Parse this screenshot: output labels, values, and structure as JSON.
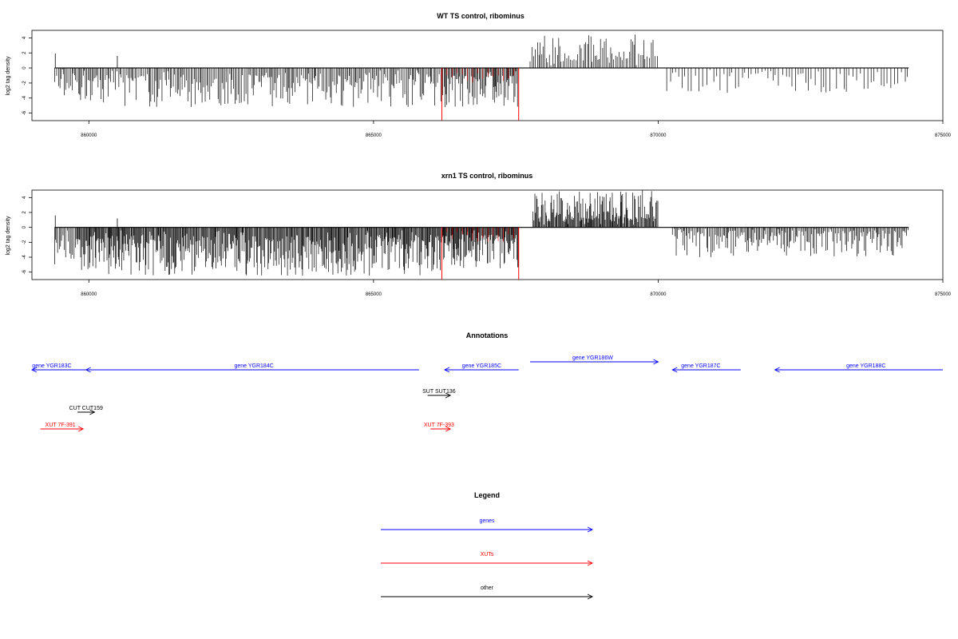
{
  "chart_data": [
    {
      "type": "bar",
      "title": "WT TS control, ribominus",
      "xlabel": "",
      "ylabel": "log2 tag density",
      "xlim": [
        859000,
        875000
      ],
      "ylim": [
        -7,
        5
      ],
      "x_ticks": [
        "860000",
        "865000",
        "870000",
        "875000"
      ],
      "y_ticks": [
        "-6",
        "-4",
        "-2",
        "0",
        "2",
        "4"
      ],
      "x_tick_values": [
        860000,
        865000,
        870000,
        875000
      ],
      "y_tick_values": [
        -6,
        -4,
        -2,
        0,
        2,
        4
      ],
      "highlight": {
        "color": "#ff0000",
        "lines": [
          {
            "x": 866200,
            "y": -7
          },
          {
            "x": 867550,
            "y": -7
          }
        ]
      },
      "series": [
        {
          "segments": [
            {
              "from": 859400,
              "to": 859550,
              "min": 0.5,
              "max": 3.5,
              "seed": 1
            },
            {
              "from": 859550,
              "to": 866200,
              "min": 0.8,
              "max": 5.2,
              "seed": 2
            },
            {
              "from": 866200,
              "to": 867550,
              "min": 1.0,
              "max": 5.5,
              "seed": 3
            },
            {
              "from": 867750,
              "to": 870000,
              "min": 0.8,
              "max": 4.6,
              "seed": 4
            },
            {
              "from": 870150,
              "to": 874400,
              "min": 0.4,
              "max": 3.5,
              "seed": 5
            }
          ],
          "signs": [
            -1,
            -1,
            -1,
            1,
            -1
          ],
          "step": [
            25,
            25,
            18,
            30,
            55
          ]
        }
      ]
    },
    {
      "type": "bar",
      "title": "xrn1 TS control, ribominus",
      "xlabel": "",
      "ylabel": "log2 tag density",
      "xlim": [
        859000,
        875000
      ],
      "ylim": [
        -7,
        5
      ],
      "x_ticks": [
        "860000",
        "865000",
        "870000",
        "875000"
      ],
      "y_ticks": [
        "-6",
        "-4",
        "-2",
        "0",
        "2",
        "4"
      ],
      "x_tick_values": [
        860000,
        865000,
        870000,
        875000
      ],
      "y_tick_values": [
        -6,
        -4,
        -2,
        0,
        2,
        4
      ],
      "highlight": {
        "color": "#ff0000",
        "lines": [
          {
            "x": 866200,
            "y": -7
          },
          {
            "x": 867550,
            "y": -7
          }
        ]
      },
      "series": [
        {
          "segments": [
            {
              "from": 859400,
              "to": 859800,
              "min": 1.0,
              "max": 5.5,
              "seed": 11
            },
            {
              "from": 859800,
              "to": 866200,
              "min": 1.0,
              "max": 6.5,
              "seed": 12
            },
            {
              "from": 866200,
              "to": 867550,
              "min": 1.0,
              "max": 5.5,
              "seed": 13
            },
            {
              "from": 867800,
              "to": 870000,
              "min": 0.8,
              "max": 5.0,
              "seed": 14
            },
            {
              "from": 870250,
              "to": 874400,
              "min": 0.4,
              "max": 4.0,
              "seed": 15
            }
          ],
          "signs": [
            -1,
            -1,
            -1,
            1,
            -1
          ],
          "step": [
            22,
            14,
            12,
            14,
            22
          ]
        }
      ]
    }
  ],
  "annotations": {
    "title": "Annotations",
    "features": [
      {
        "label": "gene YGR183C",
        "start": 859000,
        "end": 859950,
        "strand": "-",
        "row": 0,
        "color": "#0000ff",
        "label_x": 859350
      },
      {
        "label": "gene YGR184C",
        "start": 859950,
        "end": 865800,
        "strand": "-",
        "row": 0,
        "color": "#0000ff",
        "label_x": 862900
      },
      {
        "label": "gene YGR185C",
        "start": 866250,
        "end": 867550,
        "strand": "-",
        "row": 0,
        "color": "#0000ff",
        "label_x": 866900
      },
      {
        "label": "gene YGR186W",
        "start": 867750,
        "end": 870000,
        "strand": "+",
        "row": -1,
        "color": "#0000ff",
        "label_x": 868850
      },
      {
        "label": "gene YGR187C",
        "start": 870250,
        "end": 871450,
        "strand": "-",
        "row": 0,
        "color": "#0000ff",
        "label_x": 870750
      },
      {
        "label": "gene YGR188C",
        "start": 872050,
        "end": 875000,
        "strand": "-",
        "row": 0,
        "color": "#0000ff",
        "label_x": 873650
      },
      {
        "label": "SUT SUT136",
        "start": 865950,
        "end": 866350,
        "strand": "+",
        "row": 1,
        "color": "#000000",
        "label_x": 866150
      },
      {
        "label": "CUT CUT159",
        "start": 859800,
        "end": 860100,
        "strand": "+",
        "row": 2,
        "color": "#000000",
        "label_x": 859950
      },
      {
        "label": "XUT 7F-391",
        "start": 859150,
        "end": 859900,
        "strand": "+",
        "row": 3,
        "color": "#ff0000",
        "label_x": 859500
      },
      {
        "label": "XUT 7F-393",
        "start": 866000,
        "end": 866350,
        "strand": "+",
        "row": 3,
        "color": "#ff0000",
        "label_x": 866150
      }
    ]
  },
  "legend": {
    "title": "Legend",
    "items": [
      {
        "label": "genes",
        "color": "#0000ff"
      },
      {
        "label": "XUTs",
        "color": "#ff0000"
      },
      {
        "label": "other",
        "color": "#000000"
      }
    ]
  }
}
